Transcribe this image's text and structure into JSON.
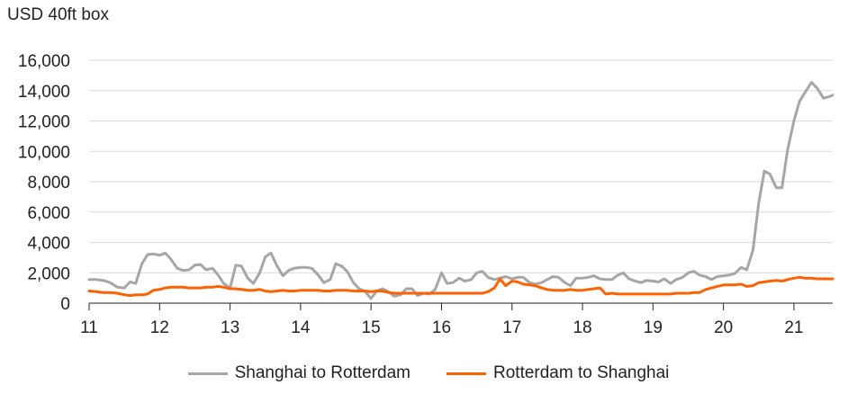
{
  "chart_data": {
    "type": "line",
    "unit_label": "USD 40ft box",
    "ylim": [
      0,
      16000
    ],
    "yticks": [
      0,
      2000,
      4000,
      6000,
      8000,
      10000,
      12000,
      14000,
      16000
    ],
    "ytick_labels": [
      "0",
      "2,000",
      "4,000",
      "6,000",
      "8,000",
      "10,000",
      "12,000",
      "14,000",
      "16,000"
    ],
    "xlim": [
      11,
      21.55
    ],
    "xticks": [
      11,
      12,
      13,
      14,
      15,
      16,
      17,
      18,
      19,
      20,
      21
    ],
    "xtick_labels": [
      "11",
      "12",
      "13",
      "14",
      "15",
      "16",
      "17",
      "18",
      "19",
      "20",
      "21"
    ],
    "grid": "horizontal",
    "legend_position": "bottom",
    "series": [
      {
        "name": "Shanghai to Rotterdam",
        "color": "#a6a6a6",
        "points": [
          [
            11.0,
            1550
          ],
          [
            11.1,
            1550
          ],
          [
            11.2,
            1500
          ],
          [
            11.3,
            1350
          ],
          [
            11.4,
            1050
          ],
          [
            11.5,
            1000
          ],
          [
            11.58,
            1400
          ],
          [
            11.66,
            1300
          ],
          [
            11.75,
            2600
          ],
          [
            11.83,
            3200
          ],
          [
            11.91,
            3250
          ],
          [
            12.0,
            3150
          ],
          [
            12.08,
            3300
          ],
          [
            12.16,
            2900
          ],
          [
            12.25,
            2300
          ],
          [
            12.33,
            2150
          ],
          [
            12.42,
            2200
          ],
          [
            12.5,
            2500
          ],
          [
            12.58,
            2550
          ],
          [
            12.66,
            2200
          ],
          [
            12.75,
            2300
          ],
          [
            12.83,
            1850
          ],
          [
            12.91,
            1300
          ],
          [
            13.0,
            1000
          ],
          [
            13.08,
            2500
          ],
          [
            13.16,
            2450
          ],
          [
            13.25,
            1650
          ],
          [
            13.33,
            1300
          ],
          [
            13.42,
            2000
          ],
          [
            13.5,
            3050
          ],
          [
            13.58,
            3300
          ],
          [
            13.66,
            2500
          ],
          [
            13.75,
            1800
          ],
          [
            13.83,
            2150
          ],
          [
            13.91,
            2300
          ],
          [
            14.0,
            2350
          ],
          [
            14.08,
            2350
          ],
          [
            14.16,
            2300
          ],
          [
            14.25,
            1850
          ],
          [
            14.33,
            1350
          ],
          [
            14.42,
            1550
          ],
          [
            14.5,
            2600
          ],
          [
            14.58,
            2450
          ],
          [
            14.66,
            2100
          ],
          [
            14.75,
            1350
          ],
          [
            14.83,
            950
          ],
          [
            14.91,
            800
          ],
          [
            15.0,
            300
          ],
          [
            15.08,
            800
          ],
          [
            15.16,
            950
          ],
          [
            15.25,
            750
          ],
          [
            15.33,
            450
          ],
          [
            15.42,
            550
          ],
          [
            15.5,
            950
          ],
          [
            15.58,
            950
          ],
          [
            15.66,
            500
          ],
          [
            15.75,
            650
          ],
          [
            15.83,
            600
          ],
          [
            15.91,
            900
          ],
          [
            16.0,
            2000
          ],
          [
            16.08,
            1300
          ],
          [
            16.16,
            1350
          ],
          [
            16.25,
            1650
          ],
          [
            16.33,
            1450
          ],
          [
            16.42,
            1550
          ],
          [
            16.5,
            2000
          ],
          [
            16.58,
            2100
          ],
          [
            16.66,
            1700
          ],
          [
            16.75,
            1550
          ],
          [
            16.83,
            1650
          ],
          [
            16.91,
            1750
          ],
          [
            17.0,
            1600
          ],
          [
            17.08,
            1700
          ],
          [
            17.16,
            1700
          ],
          [
            17.25,
            1350
          ],
          [
            17.33,
            1250
          ],
          [
            17.42,
            1350
          ],
          [
            17.5,
            1550
          ],
          [
            17.58,
            1750
          ],
          [
            17.66,
            1700
          ],
          [
            17.75,
            1350
          ],
          [
            17.83,
            1150
          ],
          [
            17.91,
            1650
          ],
          [
            18.0,
            1650
          ],
          [
            18.08,
            1700
          ],
          [
            18.16,
            1800
          ],
          [
            18.25,
            1600
          ],
          [
            18.33,
            1550
          ],
          [
            18.42,
            1550
          ],
          [
            18.5,
            1850
          ],
          [
            18.58,
            2000
          ],
          [
            18.66,
            1600
          ],
          [
            18.75,
            1450
          ],
          [
            18.83,
            1350
          ],
          [
            18.91,
            1500
          ],
          [
            19.0,
            1450
          ],
          [
            19.08,
            1400
          ],
          [
            19.16,
            1600
          ],
          [
            19.25,
            1300
          ],
          [
            19.33,
            1550
          ],
          [
            19.42,
            1700
          ],
          [
            19.5,
            2000
          ],
          [
            19.58,
            2100
          ],
          [
            19.66,
            1850
          ],
          [
            19.75,
            1750
          ],
          [
            19.83,
            1550
          ],
          [
            19.91,
            1750
          ],
          [
            20.0,
            1800
          ],
          [
            20.08,
            1850
          ],
          [
            20.16,
            1950
          ],
          [
            20.25,
            2350
          ],
          [
            20.33,
            2200
          ],
          [
            20.42,
            3500
          ],
          [
            20.5,
            6600
          ],
          [
            20.58,
            8700
          ],
          [
            20.66,
            8500
          ],
          [
            20.75,
            7600
          ],
          [
            20.83,
            7600
          ],
          [
            20.91,
            10100
          ],
          [
            21.0,
            12000
          ],
          [
            21.08,
            13300
          ],
          [
            21.16,
            13900
          ],
          [
            21.25,
            14550
          ],
          [
            21.33,
            14150
          ],
          [
            21.42,
            13500
          ],
          [
            21.5,
            13600
          ],
          [
            21.55,
            13700
          ]
        ]
      },
      {
        "name": "Rotterdam to Shanghai",
        "color": "#ff6200",
        "points": [
          [
            11.0,
            800
          ],
          [
            11.1,
            750
          ],
          [
            11.2,
            700
          ],
          [
            11.3,
            700
          ],
          [
            11.4,
            650
          ],
          [
            11.5,
            550
          ],
          [
            11.58,
            500
          ],
          [
            11.66,
            550
          ],
          [
            11.75,
            550
          ],
          [
            11.83,
            600
          ],
          [
            11.91,
            850
          ],
          [
            12.0,
            900
          ],
          [
            12.08,
            1000
          ],
          [
            12.16,
            1050
          ],
          [
            12.25,
            1050
          ],
          [
            12.33,
            1050
          ],
          [
            12.42,
            1000
          ],
          [
            12.5,
            1000
          ],
          [
            12.58,
            1000
          ],
          [
            12.66,
            1050
          ],
          [
            12.75,
            1050
          ],
          [
            12.83,
            1100
          ],
          [
            12.91,
            1050
          ],
          [
            13.0,
            950
          ],
          [
            13.08,
            950
          ],
          [
            13.16,
            900
          ],
          [
            13.25,
            850
          ],
          [
            13.33,
            850
          ],
          [
            13.42,
            900
          ],
          [
            13.5,
            800
          ],
          [
            13.58,
            750
          ],
          [
            13.66,
            800
          ],
          [
            13.75,
            850
          ],
          [
            13.83,
            800
          ],
          [
            13.91,
            800
          ],
          [
            14.0,
            850
          ],
          [
            14.08,
            850
          ],
          [
            14.16,
            850
          ],
          [
            14.25,
            850
          ],
          [
            14.33,
            800
          ],
          [
            14.42,
            800
          ],
          [
            14.5,
            850
          ],
          [
            14.58,
            850
          ],
          [
            14.66,
            850
          ],
          [
            14.75,
            800
          ],
          [
            14.83,
            800
          ],
          [
            14.91,
            800
          ],
          [
            15.0,
            750
          ],
          [
            15.08,
            800
          ],
          [
            15.16,
            800
          ],
          [
            15.25,
            700
          ],
          [
            15.33,
            650
          ],
          [
            15.42,
            650
          ],
          [
            15.5,
            650
          ],
          [
            15.58,
            650
          ],
          [
            15.66,
            650
          ],
          [
            15.75,
            650
          ],
          [
            15.83,
            650
          ],
          [
            15.91,
            650
          ],
          [
            16.0,
            650
          ],
          [
            16.08,
            650
          ],
          [
            16.16,
            650
          ],
          [
            16.25,
            650
          ],
          [
            16.33,
            650
          ],
          [
            16.42,
            650
          ],
          [
            16.5,
            650
          ],
          [
            16.58,
            650
          ],
          [
            16.66,
            750
          ],
          [
            16.75,
            1000
          ],
          [
            16.83,
            1600
          ],
          [
            16.91,
            1150
          ],
          [
            17.0,
            1450
          ],
          [
            17.08,
            1400
          ],
          [
            17.16,
            1250
          ],
          [
            17.25,
            1200
          ],
          [
            17.33,
            1150
          ],
          [
            17.42,
            1000
          ],
          [
            17.5,
            900
          ],
          [
            17.58,
            850
          ],
          [
            17.66,
            850
          ],
          [
            17.75,
            850
          ],
          [
            17.83,
            900
          ],
          [
            17.91,
            850
          ],
          [
            18.0,
            850
          ],
          [
            18.08,
            900
          ],
          [
            18.16,
            950
          ],
          [
            18.25,
            1000
          ],
          [
            18.33,
            600
          ],
          [
            18.42,
            650
          ],
          [
            18.5,
            600
          ],
          [
            18.58,
            600
          ],
          [
            18.66,
            600
          ],
          [
            18.75,
            600
          ],
          [
            18.83,
            600
          ],
          [
            18.91,
            600
          ],
          [
            19.0,
            600
          ],
          [
            19.08,
            600
          ],
          [
            19.16,
            600
          ],
          [
            19.25,
            600
          ],
          [
            19.33,
            650
          ],
          [
            19.42,
            650
          ],
          [
            19.5,
            650
          ],
          [
            19.58,
            700
          ],
          [
            19.66,
            700
          ],
          [
            19.75,
            900
          ],
          [
            19.83,
            1000
          ],
          [
            19.91,
            1100
          ],
          [
            20.0,
            1200
          ],
          [
            20.08,
            1200
          ],
          [
            20.16,
            1200
          ],
          [
            20.25,
            1250
          ],
          [
            20.33,
            1100
          ],
          [
            20.42,
            1150
          ],
          [
            20.5,
            1350
          ],
          [
            20.58,
            1400
          ],
          [
            20.66,
            1450
          ],
          [
            20.75,
            1500
          ],
          [
            20.83,
            1450
          ],
          [
            20.91,
            1550
          ],
          [
            21.0,
            1650
          ],
          [
            21.08,
            1700
          ],
          [
            21.16,
            1650
          ],
          [
            21.25,
            1650
          ],
          [
            21.33,
            1600
          ],
          [
            21.42,
            1600
          ],
          [
            21.5,
            1600
          ],
          [
            21.55,
            1600
          ]
        ]
      }
    ]
  }
}
